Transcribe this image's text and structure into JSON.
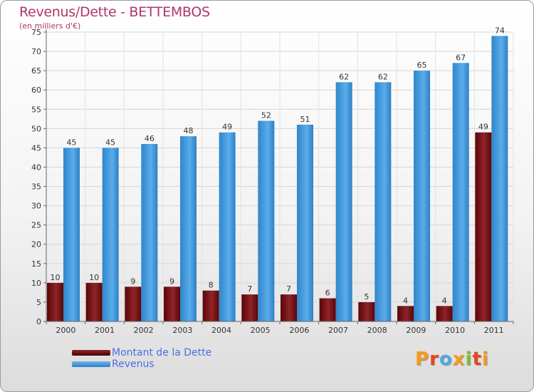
{
  "title": "Revenus/Dette - BETTEMBOS",
  "subtitle": "(en milliers d'€)",
  "brand": "Proxiti",
  "colors": {
    "title": "#b0356a",
    "dette": "#7a1418",
    "revenus": "#3f97dc",
    "legend_text": "#4a6fe0",
    "brand": [
      "#f59a1c",
      "#e8441e",
      "#52a8e3",
      "#f59a1c",
      "#7cbf32",
      "#e8441e",
      "#f59a1c"
    ]
  },
  "legend": [
    {
      "label": "Montant de la Dette",
      "color": "#7a1418"
    },
    {
      "label": "Revenus",
      "color": "#3f97dc"
    }
  ],
  "chart_data": {
    "type": "bar",
    "categories": [
      "2000",
      "2001",
      "2002",
      "2003",
      "2004",
      "2005",
      "2006",
      "2007",
      "2008",
      "2009",
      "2010",
      "2011"
    ],
    "series": [
      {
        "name": "Montant de la Dette",
        "values": [
          10,
          10,
          9,
          9,
          8,
          7,
          7,
          6,
          5,
          4,
          4,
          49
        ]
      },
      {
        "name": "Revenus",
        "values": [
          45,
          45,
          46,
          48,
          49,
          52,
          51,
          62,
          62,
          65,
          67,
          74
        ]
      }
    ],
    "ylim": [
      0,
      75
    ],
    "yticks": [
      0,
      5,
      10,
      15,
      20,
      25,
      30,
      35,
      40,
      45,
      50,
      55,
      60,
      65,
      70,
      75
    ],
    "grid": true,
    "legend_position": "bottom-left"
  }
}
